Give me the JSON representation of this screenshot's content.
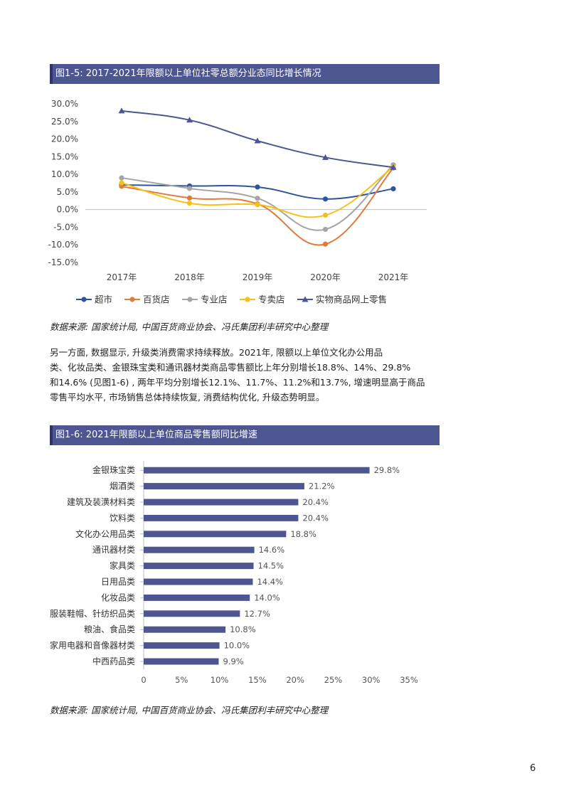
{
  "fig1": {
    "header": "图1-5: 2017-2021年限额以上单位社零总额分业态同比增长情况",
    "source": "数据来源: 国家统计局, 中国百货商业协会、冯氏集团利丰研究中心整理"
  },
  "fig2": {
    "header": "图1-6: 2021年限额以上单位商品零售额同比增速",
    "source": "数据来源: 国家统计局, 中国百货商业协会、冯氏集团利丰研究中心整理"
  },
  "paragraph": {
    "lines": [
      "另一方面, 数据显示, 升级类消费需求持续释放。2021年, 限额以上单位文化办公用品",
      "类、化妆品类、金银珠宝类和通讯器材类商品零售额比上年分别增长18.8%、14%、29.8%",
      "和14.6% (见图1-6) , 两年平均分别增长12.1%、11.7%、11.2%和13.7%, 增速明显高于商品",
      "零售平均水平, 市场销售总体持续恢复, 消费结构优化, 升级态势明显。"
    ]
  },
  "page_number": "6",
  "chart_data": [
    {
      "type": "line",
      "title": "",
      "x": [
        "2017年",
        "2018年",
        "2019年",
        "2020年",
        "2021年"
      ],
      "ylim": [
        -15,
        30
      ],
      "yticks": [
        "30.0%",
        "25.0%",
        "20.0%",
        "15.0%",
        "10.0%",
        "5.0%",
        "0.0%",
        "-5.0%",
        "-10.0%",
        "-15.0%"
      ],
      "ytick_values": [
        30,
        25,
        20,
        15,
        10,
        5,
        0,
        -5,
        -10,
        -15
      ],
      "grid": false,
      "legend_position": "bottom",
      "series": [
        {
          "name": "超市",
          "values": [
            7.0,
            6.7,
            6.4,
            3.0,
            5.9
          ],
          "color": "#2e5597",
          "marker": "circle"
        },
        {
          "name": "百货店",
          "values": [
            6.6,
            3.3,
            1.6,
            -9.8,
            11.8
          ],
          "color": "#e07b39",
          "marker": "circle"
        },
        {
          "name": "专业店",
          "values": [
            9.0,
            6.0,
            3.2,
            -5.6,
            12.7
          ],
          "color": "#a5a5a5",
          "marker": "circle"
        },
        {
          "name": "专卖店",
          "values": [
            7.6,
            1.8,
            1.4,
            -1.6,
            12.1
          ],
          "color": "#f5c118",
          "marker": "circle"
        },
        {
          "name": "实物商品网上零售",
          "values": [
            28.0,
            25.4,
            19.5,
            14.8,
            12.0
          ],
          "color": "#4d5691",
          "marker": "triangle"
        }
      ]
    },
    {
      "type": "bar",
      "orientation": "horizontal",
      "title": "",
      "categories": [
        "金银珠宝类",
        "烟酒类",
        "建筑及装潢材料类",
        "饮料类",
        "文化办公用品类",
        "通讯器材类",
        "家具类",
        "日用品类",
        "化妆品类",
        "服装鞋帽、针纺织品类",
        "粮油、食品类",
        "家用电器和音像器材类",
        "中西药品类"
      ],
      "values": [
        29.8,
        21.2,
        20.4,
        20.4,
        18.8,
        14.6,
        14.5,
        14.4,
        14.0,
        12.7,
        10.8,
        10.0,
        9.9
      ],
      "value_labels": [
        "29.8%",
        "21.2%",
        "20.4%",
        "20.4%",
        "18.8%",
        "14.6%",
        "14.5%",
        "14.4%",
        "14.0%",
        "12.7%",
        "10.8%",
        "10.0%",
        "9.9%"
      ],
      "xlim": [
        0,
        35
      ],
      "xticks": [
        "0",
        "5%",
        "10%",
        "15%",
        "20%",
        "25%",
        "30%",
        "35%"
      ],
      "xtick_values": [
        0,
        5,
        10,
        15,
        20,
        25,
        30,
        35
      ],
      "bar_color": "#4d5691",
      "grid": false
    }
  ]
}
